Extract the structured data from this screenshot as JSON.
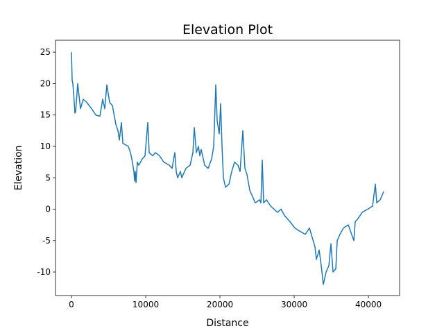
{
  "chart_data": {
    "type": "line",
    "title": "Elevation Plot",
    "x_label": "Distance",
    "y_label": "Elevation",
    "color": "#1f77b4",
    "x": [
      0,
      93,
      187,
      374,
      467,
      561,
      841,
      1215,
      1589,
      2056,
      2710,
      3271,
      3832,
      4206,
      4486,
      4766,
      5140,
      5514,
      5981,
      6262,
      6449,
      6729,
      6916,
      7664,
      7944,
      8131,
      8411,
      8505,
      8598,
      8692,
      8879,
      9066,
      9533,
      9907,
      10281,
      10468,
      10935,
      11309,
      11869,
      12430,
      13178,
      13552,
      13925,
      14112,
      14299,
      14673,
      14860,
      15421,
      15982,
      16356,
      16542,
      16823,
      17103,
      17290,
      17477,
      17944,
      18412,
      18879,
      19159,
      19440,
      19627,
      19907,
      20094,
      20281,
      20468,
      20748,
      21215,
      21589,
      21963,
      22430,
      22711,
      23085,
      23365,
      23645,
      24019,
      24393,
      24767,
      25328,
      25515,
      25702,
      25888,
      26262,
      26823,
      27290,
      27758,
      28225,
      28692,
      29440,
      30094,
      30748,
      31495,
      32056,
      32430,
      32804,
      32991,
      33365,
      33646,
      33926,
      34300,
      34673,
      34954,
      35234,
      35608,
      35795,
      36169,
      36636,
      37290,
      38037,
      38224,
      38598,
      39159,
      39907,
      40561,
      40935,
      41121,
      41589,
      42056
    ],
    "values": [
      25,
      20.5,
      20,
      17,
      15.3,
      15.5,
      20,
      16,
      17.5,
      17,
      16,
      15,
      14.8,
      17.5,
      16,
      19.8,
      17,
      16.5,
      13.5,
      12.5,
      11,
      13.8,
      10.5,
      10,
      9,
      8,
      6,
      4.5,
      6,
      4.2,
      7.5,
      7,
      8,
      8.5,
      13.8,
      9,
      8.5,
      9,
      8.5,
      7.5,
      7,
      6.5,
      9,
      6,
      5,
      6,
      5,
      6.5,
      7,
      9,
      13,
      9,
      10,
      8.5,
      9.5,
      7,
      6.5,
      8,
      10,
      19.8,
      14,
      12,
      16.8,
      10,
      5,
      3.5,
      4,
      6,
      7.5,
      7,
      6,
      12.5,
      6.5,
      5.5,
      3,
      2,
      1,
      1.5,
      1,
      7.8,
      1,
      1.5,
      0.5,
      0,
      -0.5,
      0,
      -1,
      -2,
      -3,
      -3.5,
      -4,
      -3,
      -4.5,
      -6,
      -8,
      -6.5,
      -9,
      -12,
      -10,
      -9,
      -5.5,
      -10,
      -9.5,
      -5,
      -4,
      -3,
      -2.5,
      -5,
      -2,
      -1.5,
      -0.5,
      0,
      0.5,
      4,
      1,
      1.5,
      2.8
    ],
    "xlim": [
      -2150,
      44200
    ],
    "ylim": [
      -13.75,
      26.9
    ],
    "xticks": [
      0,
      10000,
      20000,
      30000,
      40000
    ],
    "yticks": [
      -10,
      -5,
      0,
      5,
      10,
      15,
      20,
      25
    ]
  }
}
